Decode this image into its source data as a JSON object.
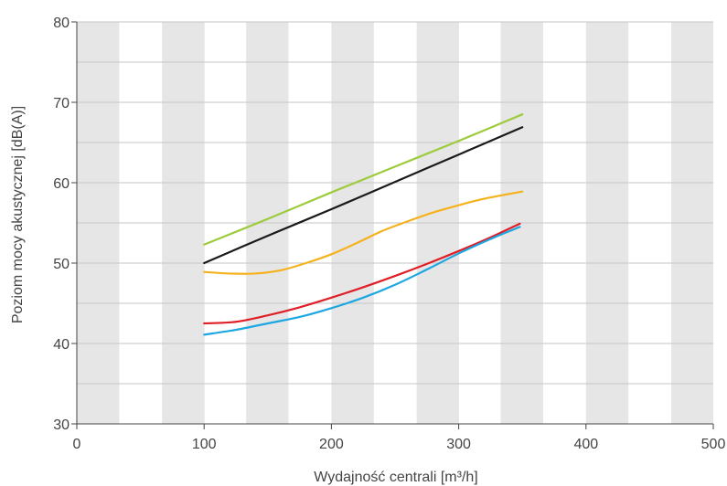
{
  "chart_data": {
    "type": "line",
    "xlabel": "Wydajność centrali [m³/h]",
    "ylabel": "Poziom mocy akustycznej [dB(A)]",
    "xlim": [
      0,
      500
    ],
    "ylim": [
      30,
      80
    ],
    "x_ticks": [
      "0",
      "100",
      "200",
      "300",
      "400",
      "500"
    ],
    "y_ticks": [
      "30",
      "40",
      "50",
      "60",
      "70",
      "80"
    ],
    "grid": true,
    "band_color": "#e6e6e7",
    "series": [
      {
        "color": "#9ccb3b",
        "x": [
          100,
          150,
          200,
          250,
          300,
          350
        ],
        "y": [
          52.3,
          55.5,
          58.8,
          62.0,
          65.2,
          68.5
        ]
      },
      {
        "color": "#1a1a1a",
        "x": [
          100,
          150,
          200,
          250,
          300,
          350
        ],
        "y": [
          50.0,
          53.4,
          56.7,
          60.1,
          63.5,
          66.9
        ]
      },
      {
        "color": "#f5b21d",
        "x": [
          100,
          120,
          140,
          160,
          180,
          200,
          220,
          240,
          260,
          280,
          300,
          320,
          350
        ],
        "y": [
          48.9,
          48.7,
          48.7,
          49.1,
          50.0,
          51.1,
          52.5,
          54.0,
          55.2,
          56.3,
          57.2,
          58.0,
          58.9
        ]
      },
      {
        "color": "#e01e26",
        "x": [
          100,
          125,
          150,
          175,
          200,
          225,
          250,
          275,
          300,
          325,
          348
        ],
        "y": [
          42.5,
          42.7,
          43.5,
          44.5,
          45.7,
          47.0,
          48.4,
          49.9,
          51.5,
          53.2,
          54.9
        ]
      },
      {
        "color": "#1ca6e2",
        "x": [
          100,
          125,
          150,
          175,
          200,
          225,
          250,
          275,
          300,
          325,
          348
        ],
        "y": [
          41.1,
          41.7,
          42.5,
          43.3,
          44.4,
          45.7,
          47.3,
          49.2,
          51.2,
          53.0,
          54.5
        ]
      }
    ]
  }
}
